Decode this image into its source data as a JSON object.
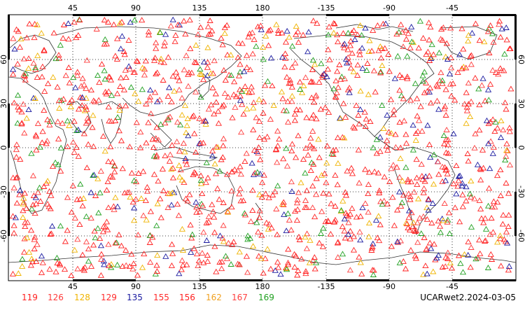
{
  "map": {
    "top_lon_labels": [
      "45",
      "90",
      "135",
      "180",
      "-135",
      "-90",
      "-45"
    ],
    "bottom_lon_labels": [
      "45",
      "90",
      "135",
      "180",
      "-135",
      "-90",
      "-45"
    ],
    "left_lat_labels": [
      "60",
      "30",
      "0",
      "-30",
      "-60"
    ],
    "right_lat_labels": [
      "60",
      "30",
      "0",
      "-30",
      "-60"
    ],
    "grid_style": "dotted",
    "lon_range": [
      0,
      360
    ],
    "lat_range": [
      -90,
      90
    ]
  },
  "legend": [
    {
      "label": "119",
      "color": "#ff2020"
    },
    {
      "label": "126",
      "color": "#ff3a3a"
    },
    {
      "label": "128",
      "color": "#f0b400"
    },
    {
      "label": "129",
      "color": "#ff2a2a"
    },
    {
      "label": "135",
      "color": "#1a1aa0"
    },
    {
      "label": "155",
      "color": "#ff2a2a"
    },
    {
      "label": "156",
      "color": "#ff2020"
    },
    {
      "label": "162",
      "color": "#f0a020"
    },
    {
      "label": "167",
      "color": "#ff4040"
    },
    {
      "label": "169",
      "color": "#20a020"
    }
  ],
  "credit": "UCARwet2.2024-03-05",
  "marker": "triangle"
}
